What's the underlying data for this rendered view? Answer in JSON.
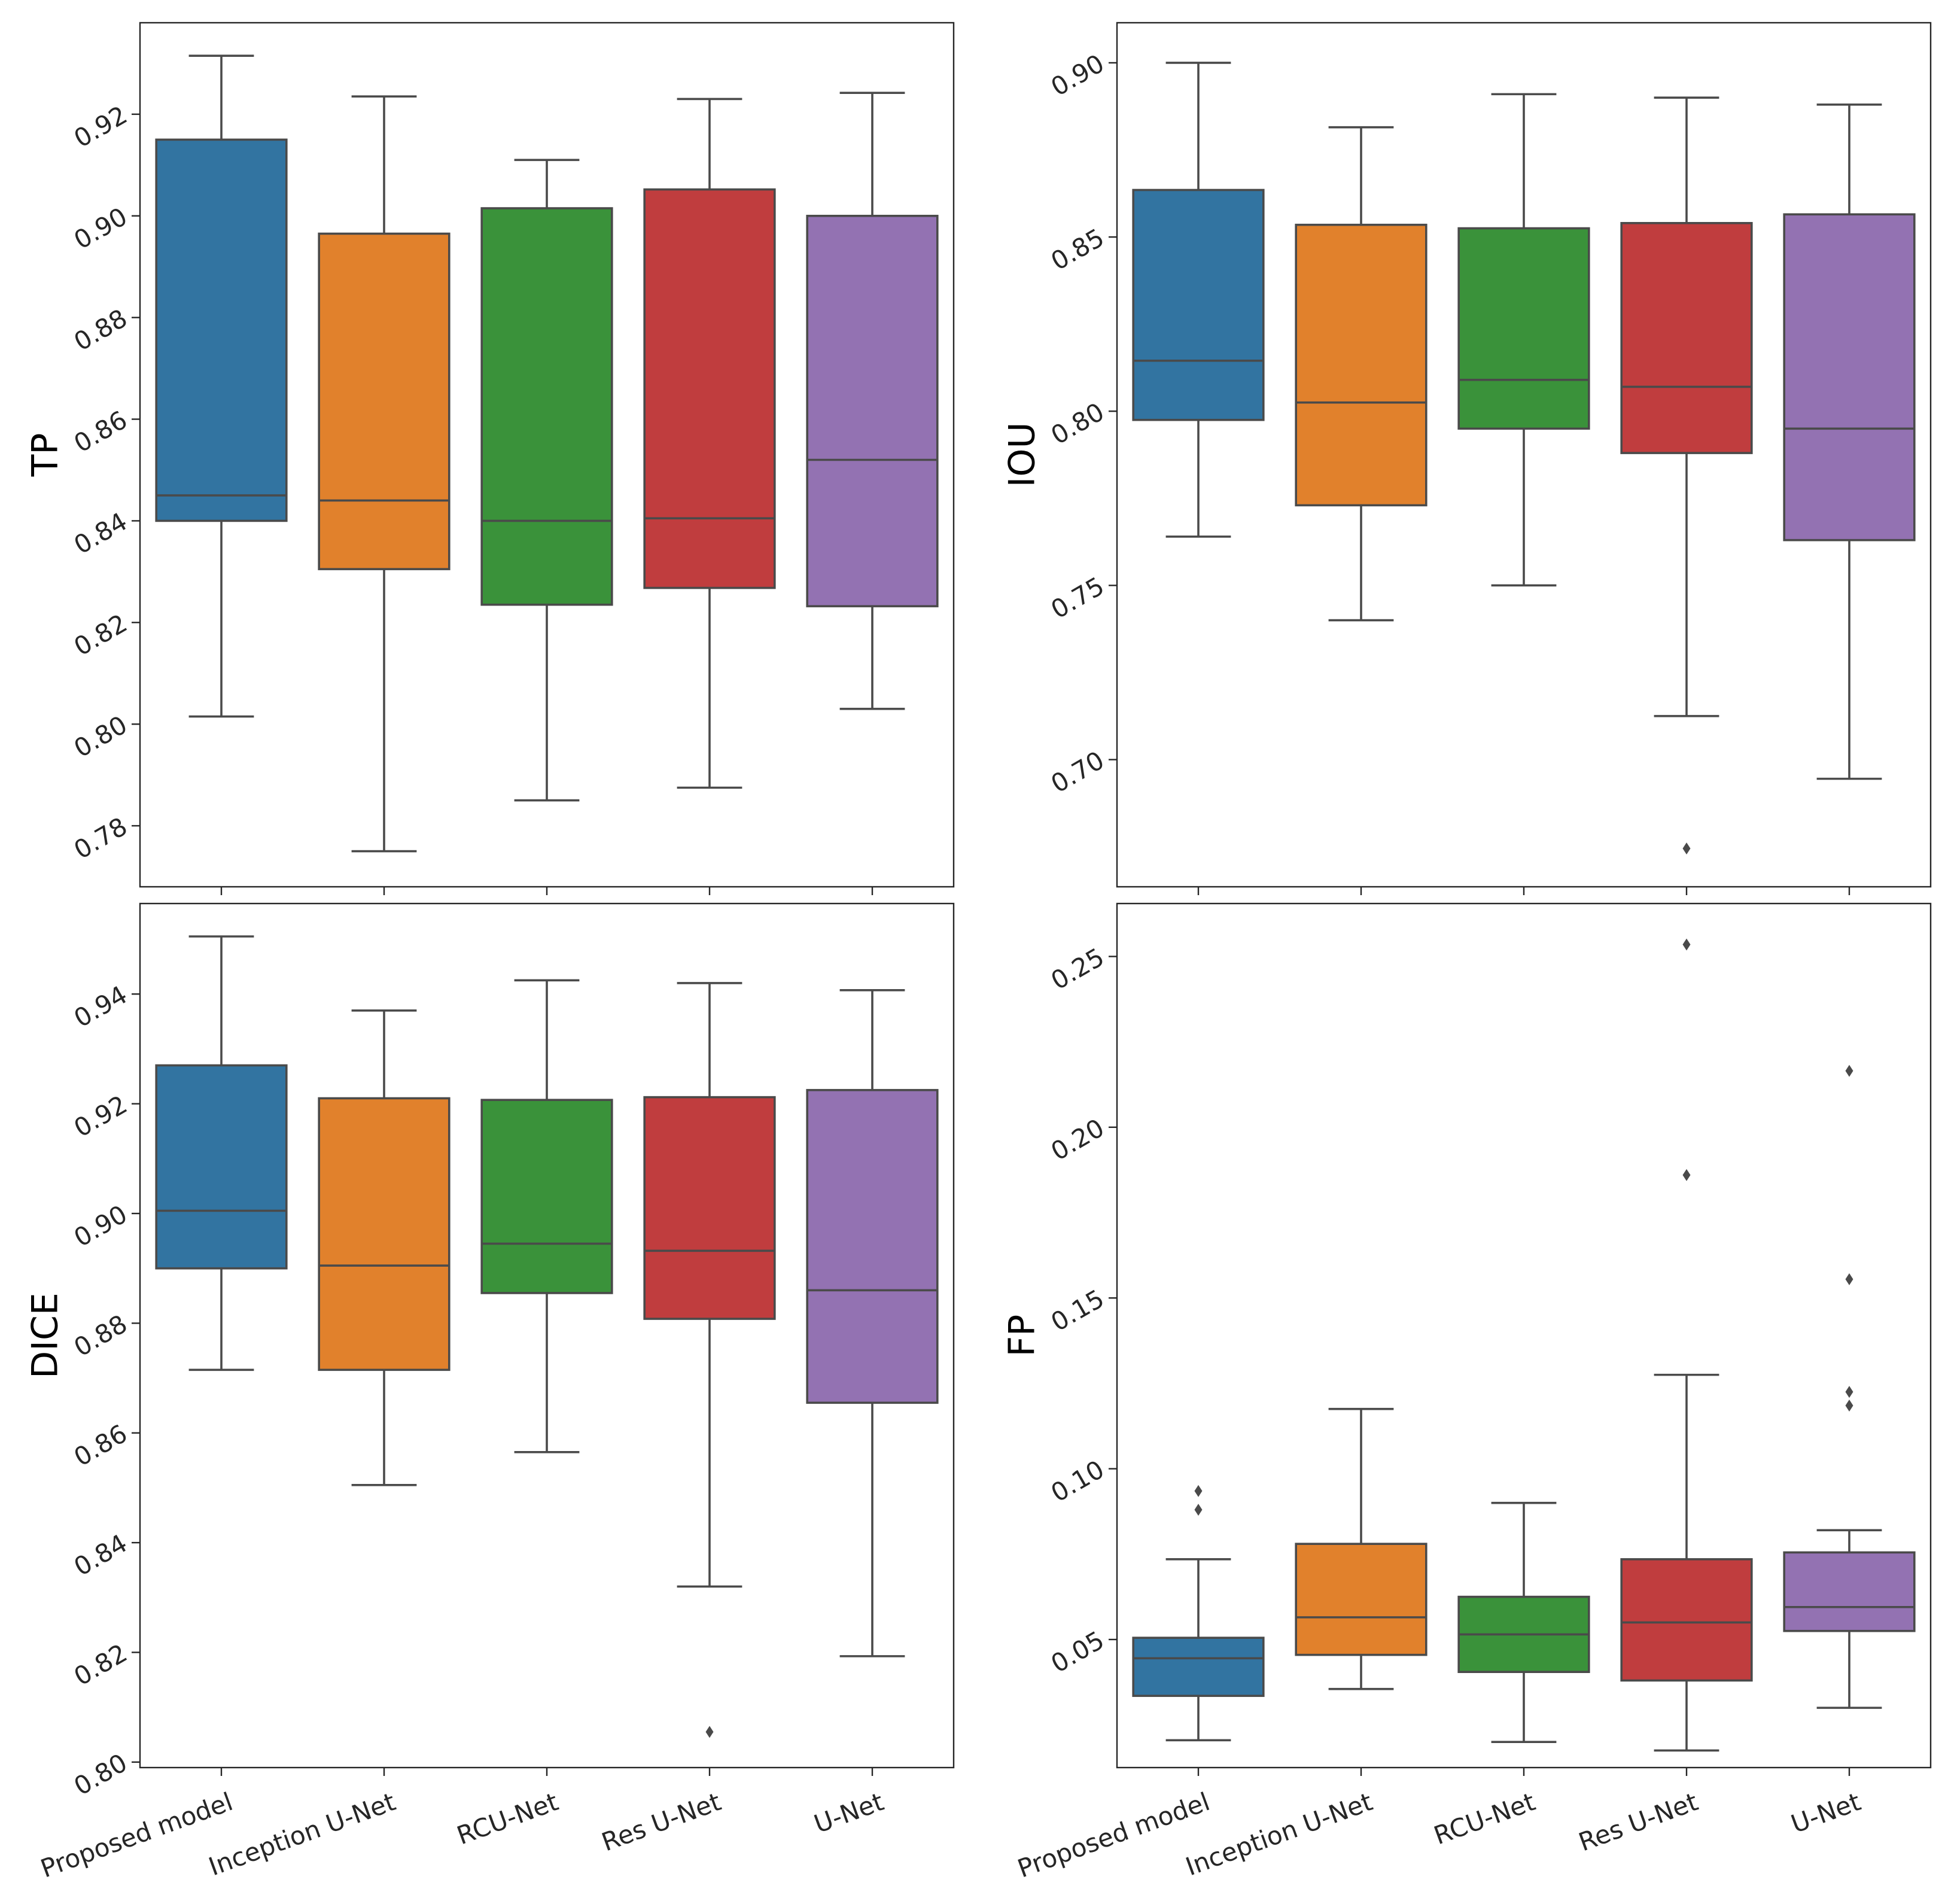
{
  "colors": [
    "#3274a1",
    "#e1812c",
    "#3a923a",
    "#c03d3e",
    "#9372b2"
  ],
  "chart_data": [
    {
      "type": "box",
      "ylabel": "TP",
      "categories": [
        "Proposed model",
        "Inception U-Net",
        "RCU-Net",
        "Res U-Net",
        "U-Net"
      ],
      "ylim": [
        0.768,
        0.938
      ],
      "yticks": [
        "0.78",
        "0.80",
        "0.82",
        "0.84",
        "0.86",
        "0.88",
        "0.90",
        "0.92"
      ],
      "boxes": [
        {
          "whisker_low": 0.8015,
          "q1": 0.84,
          "median": 0.845,
          "q3": 0.915,
          "whisker_high": 0.9315,
          "outliers": []
        },
        {
          "whisker_low": 0.775,
          "q1": 0.8305,
          "median": 0.844,
          "q3": 0.8965,
          "whisker_high": 0.9235,
          "outliers": []
        },
        {
          "whisker_low": 0.785,
          "q1": 0.8235,
          "median": 0.84,
          "q3": 0.9015,
          "whisker_high": 0.911,
          "outliers": []
        },
        {
          "whisker_low": 0.7875,
          "q1": 0.8268,
          "median": 0.8405,
          "q3": 0.9052,
          "whisker_high": 0.923,
          "outliers": []
        },
        {
          "whisker_low": 0.803,
          "q1": 0.8232,
          "median": 0.852,
          "q3": 0.9,
          "whisker_high": 0.9242,
          "outliers": []
        }
      ]
    },
    {
      "type": "box",
      "ylabel": "IOU",
      "categories": [
        "Proposed model",
        "Inception U-Net",
        "RCU-Net",
        "Res U-Net",
        "U-Net"
      ],
      "ylim": [
        0.6635,
        0.9115
      ],
      "yticks": [
        "0.70",
        "0.75",
        "0.80",
        "0.85",
        "0.90"
      ],
      "boxes": [
        {
          "whisker_low": 0.764,
          "q1": 0.7975,
          "median": 0.8145,
          "q3": 0.8635,
          "whisker_high": 0.9,
          "outliers": []
        },
        {
          "whisker_low": 0.74,
          "q1": 0.773,
          "median": 0.8025,
          "q3": 0.8535,
          "whisker_high": 0.8815,
          "outliers": []
        },
        {
          "whisker_low": 0.75,
          "q1": 0.795,
          "median": 0.809,
          "q3": 0.8525,
          "whisker_high": 0.891,
          "outliers": []
        },
        {
          "whisker_low": 0.7125,
          "q1": 0.788,
          "median": 0.807,
          "q3": 0.854,
          "whisker_high": 0.89,
          "outliers": [
            0.6745
          ]
        },
        {
          "whisker_low": 0.6945,
          "q1": 0.763,
          "median": 0.795,
          "q3": 0.8565,
          "whisker_high": 0.888,
          "outliers": []
        }
      ]
    },
    {
      "type": "box",
      "ylabel": "DICE",
      "categories": [
        "Proposed model",
        "Inception U-Net",
        "RCU-Net",
        "Res U-Net",
        "U-Net"
      ],
      "ylim": [
        0.799,
        0.9565
      ],
      "yticks": [
        "0.80",
        "0.82",
        "0.84",
        "0.86",
        "0.88",
        "0.90",
        "0.92",
        "0.94"
      ],
      "boxes": [
        {
          "whisker_low": 0.8715,
          "q1": 0.89,
          "median": 0.9005,
          "q3": 0.927,
          "whisker_high": 0.9505,
          "outliers": []
        },
        {
          "whisker_low": 0.8505,
          "q1": 0.8715,
          "median": 0.8905,
          "q3": 0.921,
          "whisker_high": 0.937,
          "outliers": []
        },
        {
          "whisker_low": 0.8565,
          "q1": 0.8855,
          "median": 0.8945,
          "q3": 0.9207,
          "whisker_high": 0.9425,
          "outliers": []
        },
        {
          "whisker_low": 0.832,
          "q1": 0.8808,
          "median": 0.8932,
          "q3": 0.9212,
          "whisker_high": 0.942,
          "outliers": [
            0.8055
          ]
        },
        {
          "whisker_low": 0.8193,
          "q1": 0.8655,
          "median": 0.886,
          "q3": 0.9225,
          "whisker_high": 0.9407,
          "outliers": []
        }
      ]
    },
    {
      "type": "box",
      "ylabel": "FP",
      "categories": [
        "Proposed model",
        "Inception U-Net",
        "RCU-Net",
        "Res U-Net",
        "U-Net"
      ],
      "ylim": [
        0.0125,
        0.2655
      ],
      "yticks": [
        "0.05",
        "0.10",
        "0.15",
        "0.20",
        "0.25"
      ],
      "boxes": [
        {
          "whisker_low": 0.0205,
          "q1": 0.0335,
          "median": 0.0445,
          "q3": 0.0505,
          "whisker_high": 0.0735,
          "outliers": [
            0.088,
            0.0935
          ]
        },
        {
          "whisker_low": 0.0355,
          "q1": 0.0455,
          "median": 0.0565,
          "q3": 0.078,
          "whisker_high": 0.1175,
          "outliers": []
        },
        {
          "whisker_low": 0.02,
          "q1": 0.0405,
          "median": 0.0515,
          "q3": 0.0625,
          "whisker_high": 0.09,
          "outliers": []
        },
        {
          "whisker_low": 0.0175,
          "q1": 0.038,
          "median": 0.055,
          "q3": 0.0735,
          "whisker_high": 0.1275,
          "outliers": [
            0.186,
            0.2535
          ]
        },
        {
          "whisker_low": 0.03,
          "q1": 0.0525,
          "median": 0.0595,
          "q3": 0.0755,
          "whisker_high": 0.082,
          "outliers": [
            0.1185,
            0.1225,
            0.1555,
            0.2165
          ]
        }
      ]
    }
  ]
}
